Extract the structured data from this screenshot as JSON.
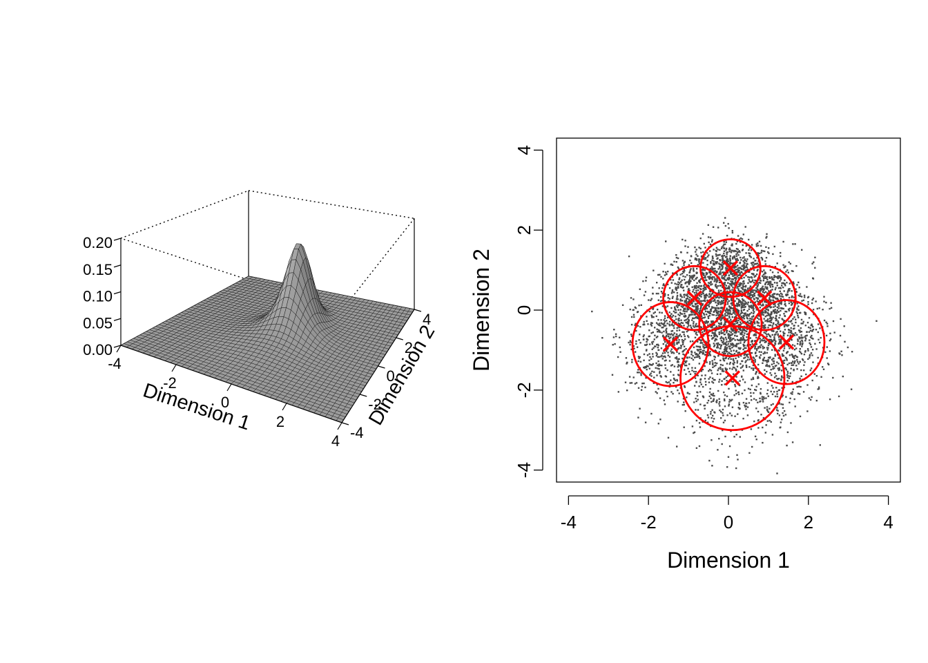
{
  "colors": {
    "surface_fill": "#9a9a9a",
    "surface_line": "#1a1a1a",
    "points": "#4a4a4a",
    "components": "#ff0000",
    "axis": "#000000"
  },
  "chart_data": [
    {
      "type": "surface3d",
      "xlabel": "Dimension 1",
      "ylabel": "Dimension 2",
      "xlim": [
        -4,
        4
      ],
      "ylim": [
        -4,
        4
      ],
      "zlim": [
        0,
        0.2
      ],
      "x_ticks": [
        "-4",
        "-2",
        "0",
        "2",
        "4"
      ],
      "y_ticks": [
        "-4",
        "-2",
        "0",
        "2",
        "4"
      ],
      "z_ticks": [
        "0.00",
        "0.05",
        "0.10",
        "0.15",
        "0.20"
      ],
      "peak": {
        "x": 0,
        "y": 1.2,
        "z": 0.2
      },
      "view": "perspective box, dotted back edges"
    },
    {
      "type": "scatter",
      "xlabel": "Dimension 1",
      "ylabel": "Dimension 2",
      "xlim": [
        -4.3,
        4.3
      ],
      "ylim": [
        -4.3,
        4.3
      ],
      "x_ticks": [
        "-4",
        "-2",
        "0",
        "2",
        "4"
      ],
      "y_ticks": [
        "-4",
        "-2",
        "0",
        "2",
        "4"
      ],
      "n_points": 4000,
      "components": [
        {
          "center": [
            0.05,
            1.05
          ],
          "rx": 0.75,
          "ry": 0.72
        },
        {
          "center": [
            -0.85,
            0.3
          ],
          "rx": 0.78,
          "ry": 0.8
        },
        {
          "center": [
            0.9,
            0.3
          ],
          "rx": 0.78,
          "ry": 0.8
        },
        {
          "center": [
            0.05,
            -0.35
          ],
          "rx": 0.78,
          "ry": 0.8
        },
        {
          "center": [
            -1.45,
            -0.85
          ],
          "rx": 0.95,
          "ry": 1.05
        },
        {
          "center": [
            1.45,
            -0.8
          ],
          "rx": 0.95,
          "ry": 1.05
        },
        {
          "center": [
            0.1,
            -1.7
          ],
          "rx": 1.3,
          "ry": 1.3
        }
      ],
      "grid": false,
      "legend": "none"
    }
  ]
}
